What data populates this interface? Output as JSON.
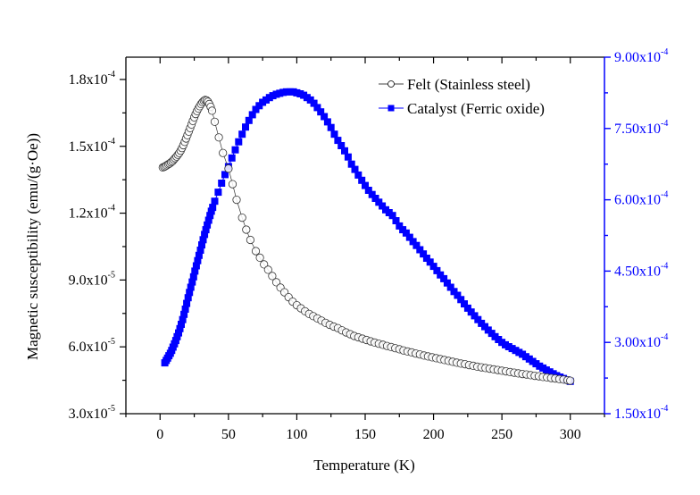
{
  "chart_data": {
    "type": "scatter",
    "title": "",
    "xlabel": "Temperature (K)",
    "ylabel": "Magnetic susceptibility (emu/(g·Oe))",
    "y2label": "",
    "xlim": [
      -25,
      325
    ],
    "ylim": [
      3e-05,
      0.00019
    ],
    "y2lim": [
      0.00015,
      0.0009
    ],
    "grid": false,
    "legend_position": "top-right",
    "x_ticks": [
      {
        "value": 0,
        "label": "0"
      },
      {
        "value": 50,
        "label": "50"
      },
      {
        "value": 100,
        "label": "100"
      },
      {
        "value": 150,
        "label": "150"
      },
      {
        "value": 200,
        "label": "200"
      },
      {
        "value": 250,
        "label": "250"
      },
      {
        "value": 300,
        "label": "300"
      }
    ],
    "y_ticks": [
      {
        "value": 3e-05,
        "mantissa": "3.0x10",
        "exponent": "-5"
      },
      {
        "value": 6e-05,
        "mantissa": "6.0x10",
        "exponent": "-5"
      },
      {
        "value": 9e-05,
        "mantissa": "9.0x10",
        "exponent": "-5"
      },
      {
        "value": 0.00012,
        "mantissa": "1.2x10",
        "exponent": "-4"
      },
      {
        "value": 0.00015,
        "mantissa": "1.5x10",
        "exponent": "-4"
      },
      {
        "value": 0.00018,
        "mantissa": "1.8x10",
        "exponent": "-4"
      }
    ],
    "y2_ticks": [
      {
        "value": 0.00015,
        "mantissa": "1.50x10",
        "exponent": "-4"
      },
      {
        "value": 0.0003,
        "mantissa": "3.00x10",
        "exponent": "-4"
      },
      {
        "value": 0.00045,
        "mantissa": "4.50x10",
        "exponent": "-4"
      },
      {
        "value": 0.0006,
        "mantissa": "6.00x10",
        "exponent": "-4"
      },
      {
        "value": 0.00075,
        "mantissa": "7.50x10",
        "exponent": "-4"
      },
      {
        "value": 0.0009,
        "mantissa": "9.00x10",
        "exponent": "-4"
      }
    ],
    "series": [
      {
        "name": "Felt (Stainless steel)",
        "axis": "left",
        "marker": "open-circle",
        "color": "#000000",
        "x": [
          2,
          3,
          4,
          5,
          6,
          7,
          8,
          9,
          10,
          11,
          12,
          13,
          14,
          15,
          16,
          17,
          18,
          19,
          20,
          21,
          22,
          23,
          24,
          25,
          26,
          27,
          28,
          29,
          30,
          31,
          32,
          33,
          34,
          35,
          36,
          37,
          38,
          40,
          43,
          46,
          50,
          53,
          56,
          60,
          63,
          66,
          70,
          73,
          76,
          79,
          82,
          85,
          88,
          91,
          94,
          97,
          100,
          103,
          106,
          109,
          112,
          115,
          118,
          121,
          124,
          127,
          130,
          133,
          136,
          139,
          142,
          145,
          148,
          151,
          154,
          157,
          160,
          163,
          166,
          169,
          172,
          175,
          178,
          181,
          184,
          187,
          190,
          193,
          196,
          199,
          202,
          205,
          208,
          211,
          214,
          217,
          220,
          223,
          226,
          229,
          232,
          235,
          238,
          241,
          244,
          247,
          250,
          253,
          256,
          259,
          262,
          265,
          268,
          271,
          274,
          277,
          280,
          283,
          286,
          289,
          292,
          295,
          298,
          300
        ],
        "values": [
          0.0001405,
          0.0001408,
          0.0001411,
          0.0001415,
          0.0001419,
          0.0001423,
          0.0001428,
          0.0001433,
          0.000144,
          0.0001447,
          0.0001454,
          0.0001462,
          0.000147,
          0.000148,
          0.0001492,
          0.0001505,
          0.000152,
          0.0001535,
          0.000155,
          0.0001566,
          0.0001582,
          0.0001598,
          0.0001614,
          0.000163,
          0.0001645,
          0.0001658,
          0.000167,
          0.000168,
          0.000169,
          0.0001698,
          0.0001704,
          0.0001708,
          0.0001706,
          0.00017,
          0.000169,
          0.0001677,
          0.000166,
          0.000161,
          0.000154,
          0.000147,
          0.00014,
          0.000133,
          0.000126,
          0.000118,
          0.0001126,
          0.000108,
          0.000103,
          0.0001,
          9.7e-05,
          9.46e-05,
          9.18e-05,
          8.9e-05,
          8.66e-05,
          8.45e-05,
          8.23e-05,
          8.03e-05,
          7.87e-05,
          7.73e-05,
          7.6e-05,
          7.48e-05,
          7.38e-05,
          7.28e-05,
          7.18e-05,
          7.08e-05,
          6.99e-05,
          6.91e-05,
          6.84e-05,
          6.74e-05,
          6.65e-05,
          6.57e-05,
          6.49e-05,
          6.43e-05,
          6.37e-05,
          6.31e-05,
          6.25e-05,
          6.19e-05,
          6.14e-05,
          6.09e-05,
          6.04e-05,
          5.99e-05,
          5.94e-05,
          5.89e-05,
          5.84e-05,
          5.79e-05,
          5.75e-05,
          5.7e-05,
          5.66e-05,
          5.61e-05,
          5.57e-05,
          5.53e-05,
          5.49e-05,
          5.45e-05,
          5.41e-05,
          5.37e-05,
          5.33e-05,
          5.29e-05,
          5.25e-05,
          5.22e-05,
          5.18e-05,
          5.15e-05,
          5.11e-05,
          5.08e-05,
          5.05e-05,
          5.02e-05,
          4.99e-05,
          4.96e-05,
          4.93e-05,
          4.9e-05,
          4.87e-05,
          4.84e-05,
          4.81e-05,
          4.78e-05,
          4.76e-05,
          4.73e-05,
          4.7e-05,
          4.68e-05,
          4.65e-05,
          4.63e-05,
          4.6e-05,
          4.58e-05,
          4.55e-05,
          4.53e-05,
          4.5e-05,
          4.48e-05
        ]
      },
      {
        "name": "Catalyst (Ferric oxide)",
        "axis": "right",
        "marker": "filled-square",
        "color": "#0000ff",
        "x": [
          3.5,
          4.5,
          5.5,
          6.5,
          7.5,
          8.5,
          9.5,
          10.5,
          11.5,
          12.5,
          13.5,
          14.5,
          15.5,
          16.5,
          17.5,
          18.5,
          19.5,
          20.5,
          21.5,
          22.5,
          23.5,
          24.5,
          25.5,
          26.5,
          27.5,
          28.5,
          29.5,
          30.5,
          31.5,
          32.5,
          33.5,
          34.5,
          35.5,
          36.5,
          37.5,
          38.5,
          40,
          42.5,
          45,
          47.5,
          50,
          52.5,
          55,
          57.5,
          60,
          62.5,
          65,
          67.5,
          70,
          72.5,
          75,
          77.5,
          80,
          82.5,
          85,
          87.5,
          90,
          92.5,
          95,
          97.5,
          100,
          102.5,
          105,
          107.5,
          110,
          112.5,
          115,
          117.5,
          120,
          122.5,
          125,
          127.5,
          130,
          132.5,
          135,
          137.5,
          140,
          142.5,
          145,
          147.5,
          150,
          152.5,
          155,
          157.5,
          160,
          162.5,
          165,
          167.5,
          170,
          172.5,
          175,
          177.5,
          180,
          182.5,
          185,
          187.5,
          190,
          192.5,
          195,
          197.5,
          200,
          202.5,
          205,
          207.5,
          210,
          212.5,
          215,
          217.5,
          220,
          222.5,
          225,
          227.5,
          230,
          232.5,
          235,
          237.5,
          240,
          242.5,
          245,
          247.5,
          250,
          252.5,
          255,
          257.5,
          260,
          262.5,
          265,
          267.5,
          270,
          272.5,
          275,
          277.5,
          280,
          282.5,
          285,
          287.5,
          290,
          292.5,
          295,
          297.5,
          300
        ],
        "values": [
          0.000257,
          0.000262,
          0.000267,
          0.000272,
          0.000277,
          0.000283,
          0.00029,
          0.000297,
          0.000304,
          0.000312,
          0.00032,
          0.000329,
          0.000338,
          0.000348,
          0.000359,
          0.00037,
          0.000382,
          0.000394,
          0.000405,
          0.000416,
          0.000427,
          0.000438,
          0.00045,
          0.000461,
          0.000472,
          0.000483,
          0.000494,
          0.000505,
          0.000516,
          0.000527,
          0.000537,
          0.000547,
          0.000557,
          0.000567,
          0.000576,
          0.000584,
          0.000597,
          0.000616,
          0.000635,
          0.000653,
          0.00067,
          0.000688,
          0.000705,
          0.000722,
          0.000738,
          0.000753,
          0.000767,
          0.000779,
          0.00079,
          0.000798,
          0.000805,
          0.00081,
          0.000815,
          0.000819,
          0.000822,
          0.000824,
          0.000826,
          0.000827,
          0.000827,
          0.000827,
          0.000825,
          0.000823,
          0.00082,
          0.000815,
          0.00081,
          0.000803,
          0.000794,
          0.000785,
          0.000775,
          0.000764,
          0.000752,
          0.000738,
          0.000725,
          0.000714,
          0.000703,
          0.00069,
          0.000675,
          0.000664,
          0.000652,
          0.000641,
          0.00063,
          0.00062,
          0.000611,
          0.000603,
          0.000595,
          0.000587,
          0.000579,
          0.000573,
          0.000567,
          0.000556,
          0.000545,
          0.000537,
          0.00053,
          0.000521,
          0.000512,
          0.000504,
          0.000495,
          0.000486,
          0.000477,
          0.000469,
          0.00046,
          0.000451,
          0.000442,
          0.000434,
          0.000425,
          0.000416,
          0.000407,
          0.000399,
          0.00039,
          0.000381,
          0.000372,
          0.000364,
          0.000356,
          0.000348,
          0.00034,
          0.000333,
          0.000326,
          0.000319,
          0.000312,
          0.000306,
          0.0003,
          0.000295,
          0.000291,
          0.000287,
          0.000283,
          0.000279,
          0.000275,
          0.00027,
          0.000265,
          0.00026,
          0.000255,
          0.00025,
          0.000246,
          0.000242,
          0.000238,
          0.000234,
          0.00023,
          0.000227,
          0.000224,
          0.000221,
          0.000218
        ]
      }
    ],
    "colors": {
      "felt": "#000000",
      "catalyst": "#0000ff",
      "right_axis": "#0000ff"
    }
  }
}
